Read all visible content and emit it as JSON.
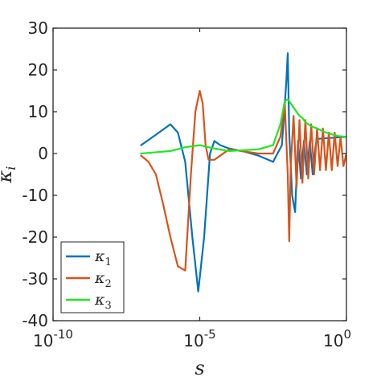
{
  "chart_data": {
    "type": "line",
    "xlabel": "s",
    "ylabel": "κi",
    "x_scale": "log",
    "xlim": [
      1e-10,
      1
    ],
    "ylim": [
      -40,
      30
    ],
    "x_ticks": [
      {
        "value": 1e-10,
        "base": "10",
        "exp": "-10"
      },
      {
        "value": 1e-05,
        "base": "10",
        "exp": "-5"
      },
      {
        "value": 1,
        "base": "10",
        "exp": "0"
      }
    ],
    "y_ticks": [
      30,
      20,
      10,
      0,
      -10,
      -20,
      -30,
      -40
    ],
    "legend": {
      "placement": "bottom-left"
    },
    "series": [
      {
        "name": "κ1",
        "label_base": "κ",
        "label_sub": "1",
        "color": "#0072BD",
        "x": [
          1e-07,
          3.2e-07,
          1e-06,
          1.8e-06,
          3.2e-06,
          5.6e-06,
          8.9e-06,
          1.41e-05,
          2.24e-05,
          3.16e-05,
          5e-05,
          0.0001,
          0.000316,
          0.001,
          0.00316,
          0.0063,
          0.0089,
          0.01,
          0.0112,
          0.0141,
          0.0178,
          0.0224,
          0.0282,
          0.0355,
          0.0447,
          0.0562,
          0.0708,
          0.089,
          0.1,
          1
        ],
        "y": [
          2,
          4.5,
          7,
          5,
          -2,
          -20,
          -33,
          -20,
          0,
          3,
          2,
          1.2,
          0.5,
          -0.5,
          -2,
          2,
          17,
          24,
          5,
          -10,
          -14,
          3,
          -6,
          3,
          -5,
          3,
          -5,
          2,
          3.5,
          4
        ]
      },
      {
        "name": "κ2",
        "label_base": "κ",
        "label_sub": "2",
        "color": "#D95319",
        "x": [
          1e-07,
          1.8e-07,
          3.2e-07,
          5.6e-07,
          1e-06,
          1.8e-06,
          3.2e-06,
          5e-06,
          7.1e-06,
          1e-05,
          1.26e-05,
          1.58e-05,
          2e-05,
          3.16e-05,
          0.0001,
          0.000316,
          0.001,
          0.00316,
          0.0056,
          0.0079,
          0.01,
          0.0112,
          0.0126,
          0.0158,
          0.02,
          0.0251,
          0.0316,
          0.0398,
          0.05,
          0.063,
          0.079,
          0.1,
          0.126,
          0.158,
          0.2,
          0.251,
          0.316,
          0.398,
          0.5,
          0.63,
          0.79,
          1
        ],
        "y": [
          -0.5,
          -2,
          -5,
          -12,
          -20,
          -27,
          -28,
          -5,
          10,
          15,
          12,
          2,
          -1.5,
          -1.5,
          1,
          0.5,
          0,
          0,
          4,
          12,
          -5,
          -21,
          -3,
          9,
          -8,
          8,
          -7,
          8,
          -6,
          7,
          -5,
          6,
          -4,
          6,
          -4,
          5,
          -4,
          5,
          -3,
          4,
          -3,
          0
        ]
      },
      {
        "name": "κ3",
        "label_base": "κ",
        "label_sub": "3",
        "color": "#21E721",
        "x": [
          1e-07,
          3.2e-07,
          1e-06,
          3.2e-06,
          1e-05,
          3.16e-05,
          0.0001,
          0.000316,
          0.001,
          0.00316,
          0.0056,
          0.0079,
          0.01,
          0.0126,
          0.0158,
          0.02,
          0.0251,
          0.0316,
          0.0398,
          0.05,
          0.063,
          0.1,
          0.2,
          0.5,
          1
        ],
        "y": [
          0,
          0.3,
          0.6,
          1.5,
          2,
          1.2,
          0.6,
          0.8,
          1,
          2,
          7,
          12.5,
          13,
          12,
          11,
          10,
          9,
          8.5,
          7.5,
          7,
          6.5,
          6,
          5,
          4.2,
          4
        ]
      }
    ]
  }
}
